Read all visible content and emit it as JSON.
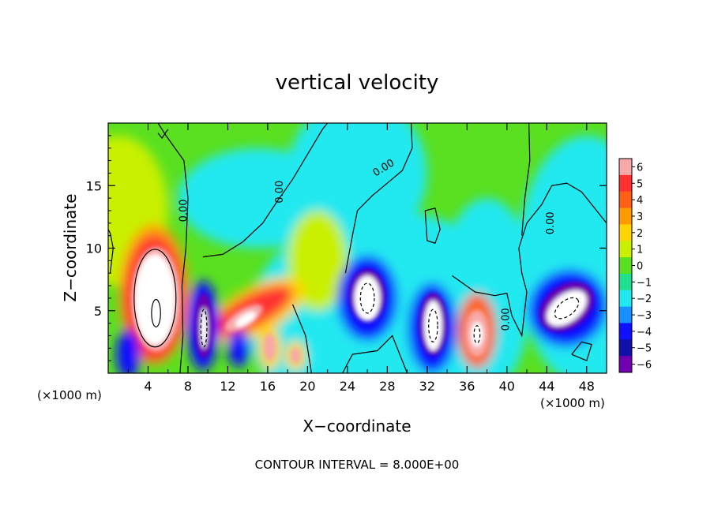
{
  "chart_data": {
    "type": "heatmap",
    "title": "vertical velocity",
    "xlabel": "X−coordinate",
    "ylabel": "Z−coordinate",
    "x_unit_label": "(×1000 m)",
    "z_unit_label": "(×1000 m)",
    "xlim": [
      0,
      50
    ],
    "ylim": [
      0,
      20
    ],
    "x_ticks": [
      4,
      8,
      12,
      16,
      20,
      24,
      28,
      32,
      36,
      40,
      44,
      48
    ],
    "y_ticks": [
      5,
      10,
      15
    ],
    "colorbar": {
      "levels": [
        6,
        5,
        4,
        3,
        2,
        1,
        0,
        -1,
        -2,
        -3,
        -4,
        -5,
        -6
      ],
      "tick_labels": [
        "6",
        "5",
        "4",
        "3",
        "2",
        "1",
        "0",
        "−1",
        "−2",
        "−3",
        "−4",
        "−5",
        "−6"
      ],
      "colors": [
        "#f7a8a8",
        "#ff3030",
        "#ff6018",
        "#ff9a00",
        "#ffd400",
        "#c8f000",
        "#5ae020",
        "#20e090",
        "#20e8f0",
        "#1890ff",
        "#1010ff",
        "#1010a8",
        "#7000b0"
      ]
    },
    "contour_label": "0.00",
    "contour_interval_text": "CONTOUR INTERVAL = 8.000E+00",
    "features": [
      {
        "kind": "updraft",
        "x": 4.8,
        "z": 6.0,
        "peak": 6
      },
      {
        "kind": "updraft",
        "x": 14.5,
        "z": 5.2,
        "peak": 5
      },
      {
        "kind": "updraft",
        "x": 16.2,
        "z": 2.0,
        "peak": 6
      },
      {
        "kind": "updraft",
        "x": 18.8,
        "z": 1.5,
        "peak": 5
      },
      {
        "kind": "updraft",
        "x": 37.0,
        "z": 3.5,
        "peak": 6
      },
      {
        "kind": "downdraft",
        "x": 9.6,
        "z": 4.0,
        "peak": -6
      },
      {
        "kind": "downdraft",
        "x": 13.0,
        "z": 2.0,
        "peak": -4
      },
      {
        "kind": "downdraft",
        "x": 26.0,
        "z": 6.2,
        "peak": -6
      },
      {
        "kind": "downdraft",
        "x": 32.5,
        "z": 4.0,
        "peak": -6
      },
      {
        "kind": "downdraft",
        "x": 46.0,
        "z": 5.5,
        "peak": -6
      }
    ]
  }
}
